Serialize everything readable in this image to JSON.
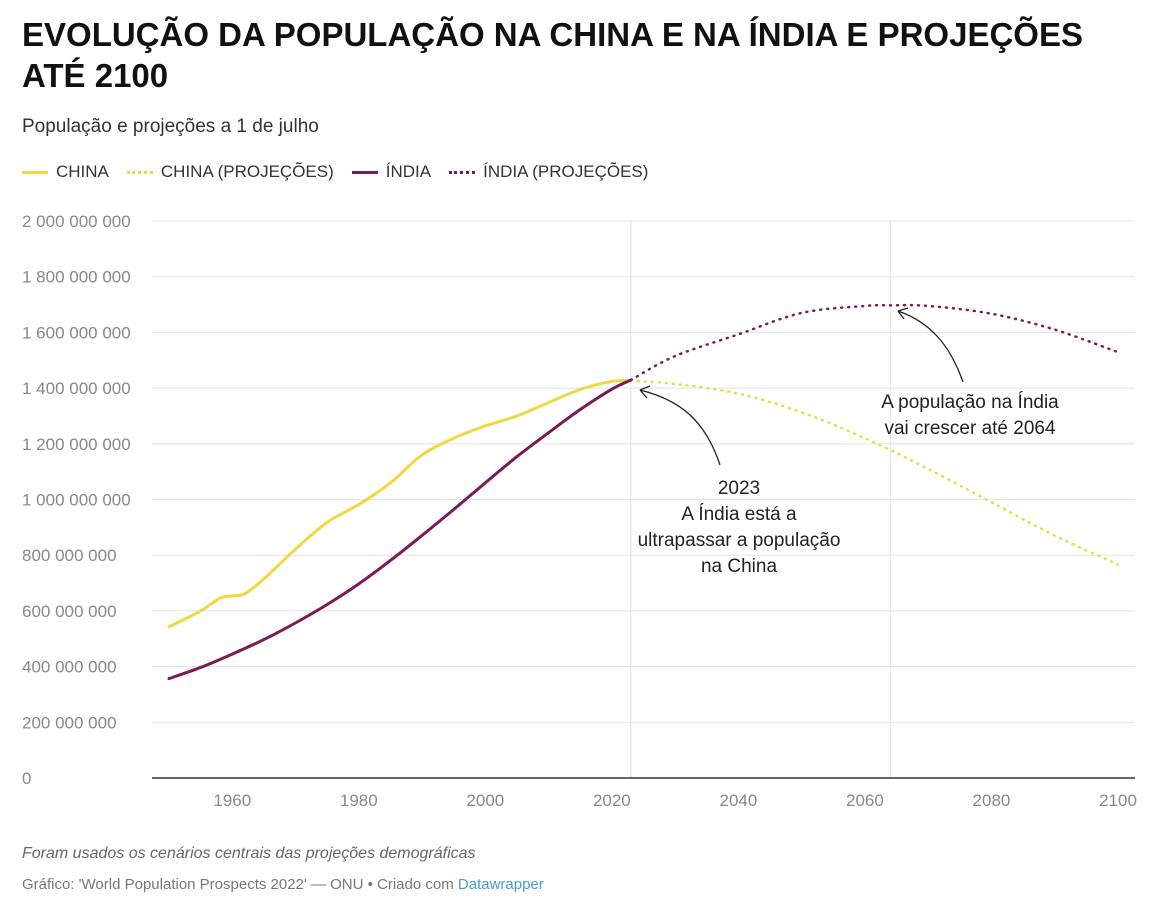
{
  "header": {
    "title": "EVOLUÇÃO DA POPULAÇÃO NA CHINA E NA ÍNDIA E PROJEÇÕES ATÉ 2100",
    "subtitle": "População e projeções a 1 de julho"
  },
  "footer": {
    "note": "Foram usados os cenários centrais das projeções demográficas",
    "source": "Gráfico: 'World Population Prospects 2022' — ONU • Criado com ",
    "link": "Datawrapper"
  },
  "colors": {
    "china": "#f0d843",
    "india": "#7a1a56"
  },
  "chart_data": {
    "type": "line",
    "title": "EVOLUÇÃO DA POPULAÇÃO NA CHINA E NA ÍNDIA E PROJEÇÕES ATÉ 2100",
    "xlim": [
      1950,
      2100
    ],
    "ylim": [
      0,
      2000000000
    ],
    "xticks": [
      1960,
      1980,
      2000,
      2020,
      2040,
      2060,
      2080,
      2100
    ],
    "yticks": [
      0,
      200000000,
      400000000,
      600000000,
      800000000,
      1000000000,
      1200000000,
      1400000000,
      1600000000,
      1800000000,
      2000000000
    ],
    "ytick_labels": [
      "0",
      "200 000 000",
      "400 000 000",
      "600 000 000",
      "800 000 000",
      "1 000 000 000",
      "1 200 000 000",
      "1 400 000 000",
      "1 600 000 000",
      "1 800 000 000",
      "2 000 000 000"
    ],
    "legend": [
      "CHINA",
      "CHINA (PROJEÇÕES)",
      "ÍNDIA",
      "ÍNDIA (PROJEÇÕES)"
    ],
    "legend_placement": "top-left",
    "series": [
      {
        "name": "CHINA",
        "style": "solid",
        "color_key": "china",
        "x": [
          1950,
          1955,
          1958,
          1960,
          1962,
          1965,
          1970,
          1975,
          1980,
          1985,
          1990,
          1995,
          2000,
          2005,
          2010,
          2015,
          2020,
          2023
        ],
        "y": [
          543,
          600,
          645,
          654,
          662,
          715,
          822,
          918,
          982,
          1060,
          1160,
          1220,
          1264,
          1300,
          1348,
          1395,
          1424,
          1426
        ]
      },
      {
        "name": "CHINA (PROJEÇÕES)",
        "style": "dotted",
        "color_key": "china",
        "x": [
          2023,
          2030,
          2040,
          2050,
          2060,
          2070,
          2080,
          2090,
          2100
        ],
        "y": [
          1426,
          1415,
          1380,
          1313,
          1220,
          1110,
          990,
          870,
          767
        ]
      },
      {
        "name": "ÍNDIA",
        "style": "solid",
        "color_key": "india",
        "x": [
          1950,
          1955,
          1960,
          1965,
          1970,
          1975,
          1980,
          1985,
          1990,
          1995,
          2000,
          2005,
          2010,
          2015,
          2020,
          2023
        ],
        "y": [
          357,
          397,
          445,
          497,
          557,
          623,
          697,
          781,
          871,
          964,
          1060,
          1154,
          1240,
          1323,
          1396,
          1429
        ]
      },
      {
        "name": "ÍNDIA (PROJEÇÕES)",
        "style": "dotted",
        "color_key": "india",
        "x": [
          2023,
          2030,
          2040,
          2050,
          2060,
          2064,
          2070,
          2080,
          2090,
          2100
        ],
        "y": [
          1429,
          1515,
          1593,
          1670,
          1695,
          1697,
          1695,
          1667,
          1610,
          1529
        ]
      }
    ],
    "y_unit_multiplier": 1000000,
    "annotations": [
      {
        "lines": [
          "2023",
          "A Índia está a",
          "ultrapassar a população",
          "na China"
        ],
        "year": 2023
      },
      {
        "lines": [
          "A população na Índia",
          "vai crescer até 2064"
        ],
        "year": 2064
      }
    ]
  }
}
